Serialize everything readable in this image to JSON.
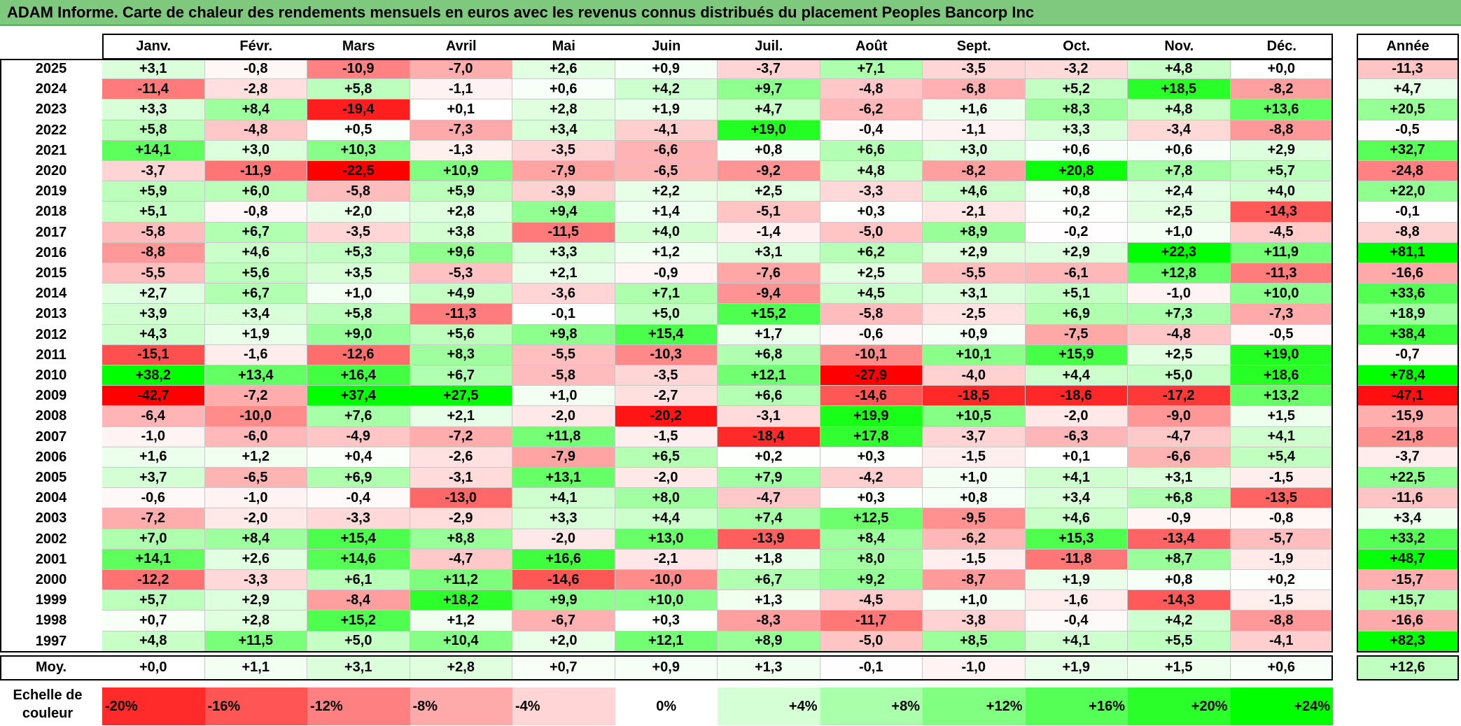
{
  "title": "ADAM Informe. Carte de chaleur des rendements mensuels en euros avec les revenus connus distribués du placement Peoples Bancorp Inc",
  "chart_data": {
    "type": "heatmap",
    "title": "ADAM Informe. Carte de chaleur des rendements mensuels en euros avec les revenus connus distribués du placement Peoples Bancorp Inc",
    "columns": [
      "Janv.",
      "Févr.",
      "Mars",
      "Avril",
      "Mai",
      "Juin",
      "Juil.",
      "Août",
      "Sept.",
      "Oct.",
      "Nov.",
      "Déc."
    ],
    "year_header": "Année",
    "rows": [
      {
        "year": "2025",
        "values": [
          "+3,1",
          "-0,8",
          "-10,9",
          "-7,0",
          "+2,6",
          "+0,9",
          "-3,7",
          "+7,1",
          "-3,5",
          "-3,2",
          "+4,8",
          "+0,0"
        ],
        "annual": "-11,3"
      },
      {
        "year": "2024",
        "values": [
          "-11,4",
          "-2,8",
          "+5,8",
          "-1,1",
          "+0,6",
          "+4,2",
          "+9,7",
          "-4,8",
          "-6,8",
          "+5,2",
          "+18,5",
          "-8,2"
        ],
        "annual": "+4,7"
      },
      {
        "year": "2023",
        "values": [
          "+3,3",
          "+8,4",
          "-19,4",
          "+0,1",
          "+2,8",
          "+1,9",
          "+4,7",
          "-6,2",
          "+1,6",
          "+8,3",
          "+4,8",
          "+13,6"
        ],
        "annual": "+20,5"
      },
      {
        "year": "2022",
        "values": [
          "+5,8",
          "-4,8",
          "+0,5",
          "-7,3",
          "+3,4",
          "-4,1",
          "+19,0",
          "-0,4",
          "-1,1",
          "+3,3",
          "-3,4",
          "-8,8"
        ],
        "annual": "-0,5"
      },
      {
        "year": "2021",
        "values": [
          "+14,1",
          "+3,0",
          "+10,3",
          "-1,3",
          "-3,5",
          "-6,6",
          "+0,8",
          "+6,6",
          "+3,0",
          "+0,6",
          "+0,6",
          "+2,9"
        ],
        "annual": "+32,7"
      },
      {
        "year": "2020",
        "values": [
          "-3,7",
          "-11,9",
          "-22,5",
          "+10,9",
          "-7,9",
          "-6,5",
          "-9,2",
          "+4,8",
          "-8,2",
          "+20,8",
          "+7,8",
          "+5,7"
        ],
        "annual": "-24,8"
      },
      {
        "year": "2019",
        "values": [
          "+5,9",
          "+6,0",
          "-5,8",
          "+5,9",
          "-3,9",
          "+2,2",
          "+2,5",
          "-3,3",
          "+4,6",
          "+0,8",
          "+2,4",
          "+4,0"
        ],
        "annual": "+22,0"
      },
      {
        "year": "2018",
        "values": [
          "+5,1",
          "-0,8",
          "+2,0",
          "+2,8",
          "+9,4",
          "+1,4",
          "-5,1",
          "+0,3",
          "-2,1",
          "+0,2",
          "+2,5",
          "-14,3"
        ],
        "annual": "-0,1"
      },
      {
        "year": "2017",
        "values": [
          "-5,8",
          "+6,7",
          "-3,5",
          "+3,8",
          "-11,5",
          "+4,0",
          "-1,4",
          "-5,0",
          "+8,9",
          "-0,2",
          "+1,0",
          "-4,5"
        ],
        "annual": "-8,8"
      },
      {
        "year": "2016",
        "values": [
          "-8,8",
          "+4,6",
          "+5,3",
          "+9,6",
          "+3,3",
          "+1,2",
          "+3,1",
          "+6,2",
          "+2,9",
          "+2,9",
          "+22,3",
          "+11,9"
        ],
        "annual": "+81,1"
      },
      {
        "year": "2015",
        "values": [
          "-5,5",
          "+5,6",
          "+3,5",
          "-5,3",
          "+2,1",
          "-0,9",
          "-7,6",
          "+2,5",
          "-5,5",
          "-6,1",
          "+12,8",
          "-11,3"
        ],
        "annual": "-16,6"
      },
      {
        "year": "2014",
        "values": [
          "+2,7",
          "+6,7",
          "+1,0",
          "+4,9",
          "-3,6",
          "+7,1",
          "-9,4",
          "+4,5",
          "+3,1",
          "+5,1",
          "-1,0",
          "+10,0"
        ],
        "annual": "+33,6"
      },
      {
        "year": "2013",
        "values": [
          "+3,9",
          "+3,4",
          "+5,8",
          "-11,3",
          "-0,1",
          "+5,0",
          "+15,2",
          "-5,8",
          "-2,5",
          "+6,9",
          "+7,3",
          "-7,3"
        ],
        "annual": "+18,9"
      },
      {
        "year": "2012",
        "values": [
          "+4,3",
          "+1,9",
          "+9,0",
          "+5,6",
          "+9,8",
          "+15,4",
          "+1,7",
          "-0,6",
          "+0,9",
          "-7,5",
          "-4,8",
          "-0,5"
        ],
        "annual": "+38,4"
      },
      {
        "year": "2011",
        "values": [
          "-15,1",
          "-1,6",
          "-12,6",
          "+8,3",
          "-5,5",
          "-10,3",
          "+6,8",
          "-10,1",
          "+10,1",
          "+15,9",
          "+2,5",
          "+19,0"
        ],
        "annual": "-0,7"
      },
      {
        "year": "2010",
        "values": [
          "+38,2",
          "+13,4",
          "+16,4",
          "+6,7",
          "-5,8",
          "-3,5",
          "+12,1",
          "-27,9",
          "-4,0",
          "+4,4",
          "+5,0",
          "+18,6"
        ],
        "annual": "+78,4"
      },
      {
        "year": "2009",
        "values": [
          "-42,7",
          "-7,2",
          "+37,4",
          "+27,5",
          "+1,0",
          "-2,7",
          "+6,6",
          "-14,6",
          "-18,5",
          "-18,6",
          "-17,2",
          "+13,2"
        ],
        "annual": "-47,1"
      },
      {
        "year": "2008",
        "values": [
          "-6,4",
          "-10,0",
          "+7,6",
          "+2,1",
          "-2,0",
          "-20,2",
          "-3,1",
          "+19,9",
          "+10,5",
          "-2,0",
          "-9,0",
          "+1,5"
        ],
        "annual": "-15,9"
      },
      {
        "year": "2007",
        "values": [
          "-1,0",
          "-6,0",
          "-4,9",
          "-7,2",
          "+11,8",
          "-1,5",
          "-18,4",
          "+17,8",
          "-3,7",
          "-6,3",
          "-4,7",
          "+4,1"
        ],
        "annual": "-21,8"
      },
      {
        "year": "2006",
        "values": [
          "+1,6",
          "+1,2",
          "+0,4",
          "-2,6",
          "-7,9",
          "+6,5",
          "+0,2",
          "+0,3",
          "-1,5",
          "+0,1",
          "-6,6",
          "+5,4"
        ],
        "annual": "-3,7"
      },
      {
        "year": "2005",
        "values": [
          "+3,7",
          "-6,5",
          "+6,9",
          "-3,1",
          "+13,1",
          "-2,0",
          "+7,9",
          "-4,2",
          "+1,0",
          "+4,1",
          "+3,1",
          "-1,5"
        ],
        "annual": "+22,5"
      },
      {
        "year": "2004",
        "values": [
          "-0,6",
          "-1,0",
          "-0,4",
          "-13,0",
          "+4,1",
          "+8,0",
          "-4,7",
          "+0,3",
          "+0,8",
          "+3,4",
          "+6,8",
          "-13,5"
        ],
        "annual": "-11,6"
      },
      {
        "year": "2003",
        "values": [
          "-7,2",
          "-2,0",
          "-3,3",
          "-2,9",
          "+3,3",
          "+4,4",
          "+7,4",
          "+12,5",
          "-9,5",
          "+4,6",
          "-0,9",
          "-0,8"
        ],
        "annual": "+3,4"
      },
      {
        "year": "2002",
        "values": [
          "+7,0",
          "+8,4",
          "+15,4",
          "+8,8",
          "-2,0",
          "+13,0",
          "-13,9",
          "+8,4",
          "-6,2",
          "+15,3",
          "-13,4",
          "-5,7"
        ],
        "annual": "+33,2"
      },
      {
        "year": "2001",
        "values": [
          "+14,1",
          "+2,6",
          "+14,6",
          "-4,7",
          "+16,6",
          "-2,1",
          "+1,8",
          "+8,0",
          "-1,5",
          "-11,8",
          "+8,7",
          "-1,9"
        ],
        "annual": "+48,7"
      },
      {
        "year": "2000",
        "values": [
          "-12,2",
          "-3,3",
          "+6,1",
          "+11,2",
          "-14,6",
          "-10,0",
          "+6,7",
          "+9,2",
          "-8,7",
          "+1,9",
          "+0,8",
          "+0,2"
        ],
        "annual": "-15,7"
      },
      {
        "year": "1999",
        "values": [
          "+5,7",
          "+2,9",
          "-8,4",
          "+18,2",
          "+9,9",
          "+10,0",
          "+1,3",
          "-4,5",
          "+1,0",
          "-1,6",
          "-14,3",
          "-1,5"
        ],
        "annual": "+15,7"
      },
      {
        "year": "1998",
        "values": [
          "+0,7",
          "+2,8",
          "+15,2",
          "+1,2",
          "-6,7",
          "+0,3",
          "-8,3",
          "-11,7",
          "-3,8",
          "-0,4",
          "+4,2",
          "-8,8"
        ],
        "annual": "-16,6"
      },
      {
        "year": "1997",
        "values": [
          "+4,8",
          "+11,5",
          "+5,0",
          "+10,4",
          "+2,0",
          "+12,1",
          "+8,9",
          "-5,0",
          "+8,5",
          "+4,1",
          "+5,5",
          "-4,1"
        ],
        "annual": "+82,3"
      }
    ],
    "average": {
      "label": "Moy.",
      "values": [
        "+0,0",
        "+1,1",
        "+3,1",
        "+2,8",
        "+0,7",
        "+0,9",
        "+1,3",
        "-0,1",
        "-1,0",
        "+1,9",
        "+1,5",
        "+0,6"
      ],
      "annual": "+12,6"
    },
    "scale": {
      "label": "Echelle de couleur",
      "steps": [
        {
          "label": "-20%",
          "value": -20
        },
        {
          "label": "-16%",
          "value": -16
        },
        {
          "label": "-12%",
          "value": -12
        },
        {
          "label": "-8%",
          "value": -8
        },
        {
          "label": "-4%",
          "value": -4
        },
        {
          "label": "0%",
          "value": 0
        },
        {
          "label": "+4%",
          "value": 4
        },
        {
          "label": "+8%",
          "value": 8
        },
        {
          "label": "+12%",
          "value": 12
        },
        {
          "label": "+16%",
          "value": 16
        },
        {
          "label": "+20%",
          "value": 20
        },
        {
          "label": "+24%",
          "value": 24
        }
      ]
    },
    "colors": {
      "negative": "#ff0000",
      "neutral": "#ffffff",
      "positive": "#00ff00",
      "header_bar": "#7fc97f"
    }
  }
}
